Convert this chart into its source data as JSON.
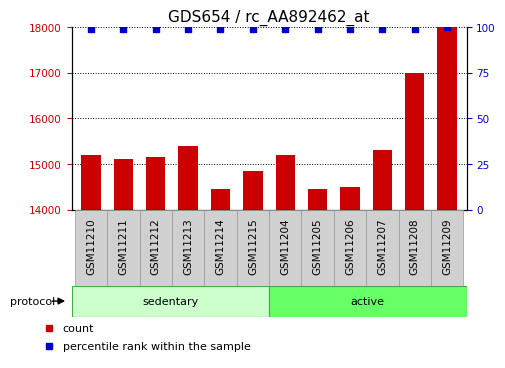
{
  "title": "GDS654 / rc_AA892462_at",
  "samples": [
    "GSM11210",
    "GSM11211",
    "GSM11212",
    "GSM11213",
    "GSM11214",
    "GSM11215",
    "GSM11204",
    "GSM11205",
    "GSM11206",
    "GSM11207",
    "GSM11208",
    "GSM11209"
  ],
  "counts": [
    15200,
    15100,
    15150,
    15400,
    14450,
    14850,
    15200,
    14450,
    14500,
    15300,
    17000,
    18000
  ],
  "percentiles": [
    99,
    99,
    99,
    99,
    99,
    99,
    99,
    99,
    99,
    99,
    99,
    100
  ],
  "n_sedentary": 6,
  "n_active": 6,
  "ylim_left": [
    14000,
    18000
  ],
  "ylim_right": [
    0,
    100
  ],
  "yticks_left": [
    14000,
    15000,
    16000,
    17000,
    18000
  ],
  "yticks_right": [
    0,
    25,
    50,
    75,
    100
  ],
  "bar_color": "#cc0000",
  "dot_color": "#0000cc",
  "grid_color": "#000000",
  "title_fontsize": 11,
  "tick_fontsize": 7.5,
  "label_fontsize": 8,
  "sedentary_color": "#ccffcc",
  "active_color": "#66ff66",
  "cell_color": "#d0d0d0",
  "cell_edge_color": "#999999",
  "protocol_label": "protocol",
  "sedentary_label": "sedentary",
  "active_label": "active",
  "legend_count_label": "count",
  "legend_pct_label": "percentile rank within the sample"
}
